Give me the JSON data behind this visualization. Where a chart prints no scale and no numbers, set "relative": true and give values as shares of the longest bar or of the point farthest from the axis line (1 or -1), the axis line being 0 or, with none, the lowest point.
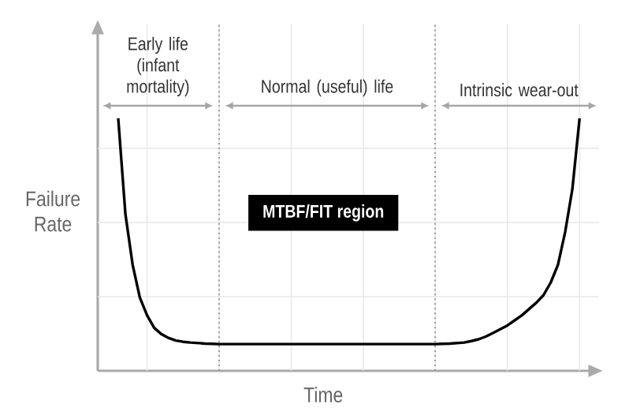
{
  "chart_data": {
    "type": "line",
    "relative": true,
    "grid": true,
    "xlabel": "Time",
    "ylabel": "Failure Rate",
    "categories": [
      null,
      null,
      null,
      null,
      null,
      null,
      null,
      null,
      null,
      null,
      null,
      null,
      null,
      null,
      null,
      null,
      null,
      null,
      null,
      null,
      null,
      null,
      null,
      null,
      null,
      null,
      null,
      null,
      null,
      null,
      null,
      null,
      null,
      null,
      null,
      null,
      null,
      null,
      null,
      null,
      null,
      null,
      null,
      null,
      null,
      null,
      null,
      null,
      null,
      null,
      null,
      null,
      null,
      null,
      null,
      null,
      null,
      null,
      null,
      null,
      null,
      null,
      null,
      null,
      null
    ],
    "series": [
      {
        "color": "#000000",
        "values": [
          1.0,
          0.62,
          0.42,
          0.29,
          0.22,
          0.17,
          0.145,
          0.13,
          0.12,
          0.115,
          0.112,
          0.11,
          0.108,
          0.107,
          0.106,
          0.106,
          0.106,
          0.106,
          0.106,
          0.106,
          0.106,
          0.106,
          0.106,
          0.106,
          0.106,
          0.106,
          0.106,
          0.106,
          0.106,
          0.106,
          0.106,
          0.106,
          0.106,
          0.106,
          0.106,
          0.106,
          0.106,
          0.106,
          0.106,
          0.106,
          0.106,
          0.106,
          0.106,
          0.106,
          0.106,
          0.107,
          0.108,
          0.11,
          0.112,
          0.118,
          0.125,
          0.136,
          0.15,
          0.165,
          0.18,
          0.2,
          0.22,
          0.245,
          0.27,
          0.3,
          0.35,
          0.42,
          0.55,
          0.72,
          1.0
        ]
      }
    ],
    "annotations": [
      "Early life (infant mortality)",
      "Normal (useful) life",
      "Intrinsic wear-out",
      "MTBF/FIT region"
    ]
  }
}
